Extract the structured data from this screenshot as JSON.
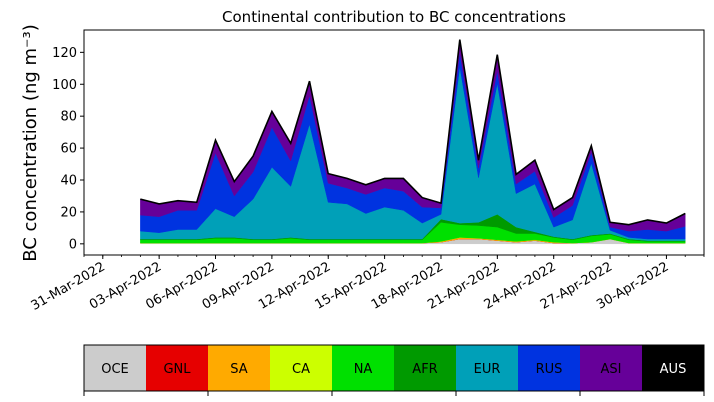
{
  "chart_data": {
    "type": "area",
    "stacked": true,
    "title": "Continental contribution to BC concentrations",
    "ylabel": "BC concentration (ng m⁻³)",
    "xlabel": "",
    "ylim": [
      -7,
      134
    ],
    "xlim": [
      "2022-03-30",
      "2022-05-02"
    ],
    "yticks": [
      0,
      20,
      40,
      60,
      80,
      100,
      120
    ],
    "xticks": [
      "31-Mar-2022",
      "03-Apr-2022",
      "06-Apr-2022",
      "09-Apr-2022",
      "12-Apr-2022",
      "15-Apr-2022",
      "18-Apr-2022",
      "21-Apr-2022",
      "24-Apr-2022",
      "27-Apr-2022",
      "30-Apr-2022"
    ],
    "grid": false,
    "x": [
      "2022-04-02",
      "2022-04-03",
      "2022-04-04",
      "2022-04-05",
      "2022-04-06",
      "2022-04-07",
      "2022-04-08",
      "2022-04-09",
      "2022-04-10",
      "2022-04-11",
      "2022-04-12",
      "2022-04-13",
      "2022-04-14",
      "2022-04-15",
      "2022-04-16",
      "2022-04-17",
      "2022-04-18",
      "2022-04-19",
      "2022-04-20",
      "2022-04-21",
      "2022-04-22",
      "2022-04-23",
      "2022-04-24",
      "2022-04-25",
      "2022-04-26",
      "2022-04-27",
      "2022-04-28",
      "2022-04-29",
      "2022-04-30",
      "2022-05-01"
    ],
    "series": [
      {
        "name": "OCE",
        "color": "#cccccc",
        "values": [
          0.5,
          0.5,
          0.5,
          0.5,
          0.5,
          0.5,
          0.5,
          0.5,
          0.5,
          0.5,
          0.5,
          0.5,
          0.5,
          0.5,
          0.5,
          0.5,
          1,
          3,
          3,
          2,
          1,
          2,
          0.5,
          0.5,
          1,
          3,
          0.5,
          0.5,
          0.5,
          0.5
        ]
      },
      {
        "name": "GNL",
        "color": "#e60000",
        "values": [
          0,
          0,
          0,
          0,
          0,
          0,
          0,
          0,
          0,
          0,
          0,
          0,
          0,
          0,
          0,
          0,
          0,
          0,
          0,
          0,
          0,
          0,
          0,
          0,
          0,
          0,
          0,
          0,
          0,
          0
        ]
      },
      {
        "name": "SA",
        "color": "#ffaa00",
        "values": [
          0,
          0,
          0,
          0,
          0,
          0,
          0,
          0,
          0,
          0,
          0,
          0,
          0,
          0,
          0,
          0,
          0.5,
          1,
          0.5,
          0.5,
          0.5,
          0.5,
          0.5,
          0,
          0,
          0,
          0,
          0,
          0,
          0
        ]
      },
      {
        "name": "CA",
        "color": "#ccff00",
        "values": [
          0,
          0,
          0,
          0,
          0,
          0,
          0,
          0,
          0,
          0,
          0,
          0,
          0,
          0,
          0,
          0,
          0,
          0,
          0,
          0,
          0,
          0,
          0,
          0,
          0,
          0,
          0,
          0,
          0,
          0
        ]
      },
      {
        "name": "NA",
        "color": "#00e000",
        "values": [
          2,
          2,
          2,
          2,
          3,
          3,
          2,
          2,
          3,
          2,
          2,
          2,
          2,
          2,
          2,
          2,
          12,
          8,
          8,
          8,
          5,
          4,
          3,
          2,
          4,
          3,
          2,
          1,
          1,
          1
        ]
      },
      {
        "name": "AFR",
        "color": "#009a00",
        "values": [
          0.5,
          0.5,
          0.5,
          0.5,
          0.5,
          0.5,
          0.5,
          0.5,
          0.5,
          0.5,
          0.5,
          0.5,
          0.5,
          0.5,
          0.5,
          0.5,
          2,
          1,
          2,
          8,
          4,
          1,
          0.5,
          0.5,
          0.5,
          0.5,
          0.5,
          0.5,
          0.5,
          0.5
        ]
      },
      {
        "name": "EUR",
        "color": "#00a0b8",
        "values": [
          5,
          4,
          6,
          6,
          18,
          13,
          25,
          45,
          32,
          72,
          23,
          22,
          16,
          20,
          18,
          10,
          3,
          98,
          28,
          82,
          21,
          30,
          6,
          12,
          45,
          2,
          1,
          1,
          1,
          1
        ]
      },
      {
        "name": "RUS",
        "color": "#0033e0",
        "values": [
          10,
          10,
          12,
          12,
          35,
          13,
          17,
          25,
          16,
          18,
          12,
          10,
          12,
          12,
          12,
          10,
          4,
          9,
          6,
          8,
          6,
          8,
          6,
          9,
          7,
          2,
          4,
          6,
          5,
          8
        ]
      },
      {
        "name": "ASI",
        "color": "#660099",
        "values": [
          10,
          8,
          6,
          5,
          8,
          9,
          10,
          10,
          11,
          9,
          6,
          6,
          6,
          6,
          8,
          6,
          3,
          8,
          5,
          10,
          6,
          7,
          5,
          5,
          4,
          3,
          4,
          6,
          5,
          8
        ]
      },
      {
        "name": "AUS",
        "color": "#000000",
        "values": [
          0,
          0,
          0,
          0,
          0,
          0,
          0,
          0,
          0,
          0,
          0,
          0,
          0,
          0,
          0,
          0,
          0,
          0,
          0,
          0,
          0,
          0,
          0,
          0,
          0,
          0,
          0,
          0,
          0,
          0
        ]
      }
    ],
    "legend": {
      "placement": "bottom colorbar",
      "entries": [
        {
          "label": "OCE",
          "color": "#cccccc",
          "text_color": "#000000"
        },
        {
          "label": "GNL",
          "color": "#e60000",
          "text_color": "#000000"
        },
        {
          "label": "SA",
          "color": "#ffaa00",
          "text_color": "#000000"
        },
        {
          "label": "CA",
          "color": "#ccff00",
          "text_color": "#000000"
        },
        {
          "label": "NA",
          "color": "#00e000",
          "text_color": "#000000"
        },
        {
          "label": "AFR",
          "color": "#009a00",
          "text_color": "#000000"
        },
        {
          "label": "EUR",
          "color": "#00a0b8",
          "text_color": "#000000"
        },
        {
          "label": "RUS",
          "color": "#0033e0",
          "text_color": "#000000"
        },
        {
          "label": "ASI",
          "color": "#660099",
          "text_color": "#000000"
        },
        {
          "label": "AUS",
          "color": "#000000",
          "text_color": "#ffffff"
        }
      ]
    }
  }
}
